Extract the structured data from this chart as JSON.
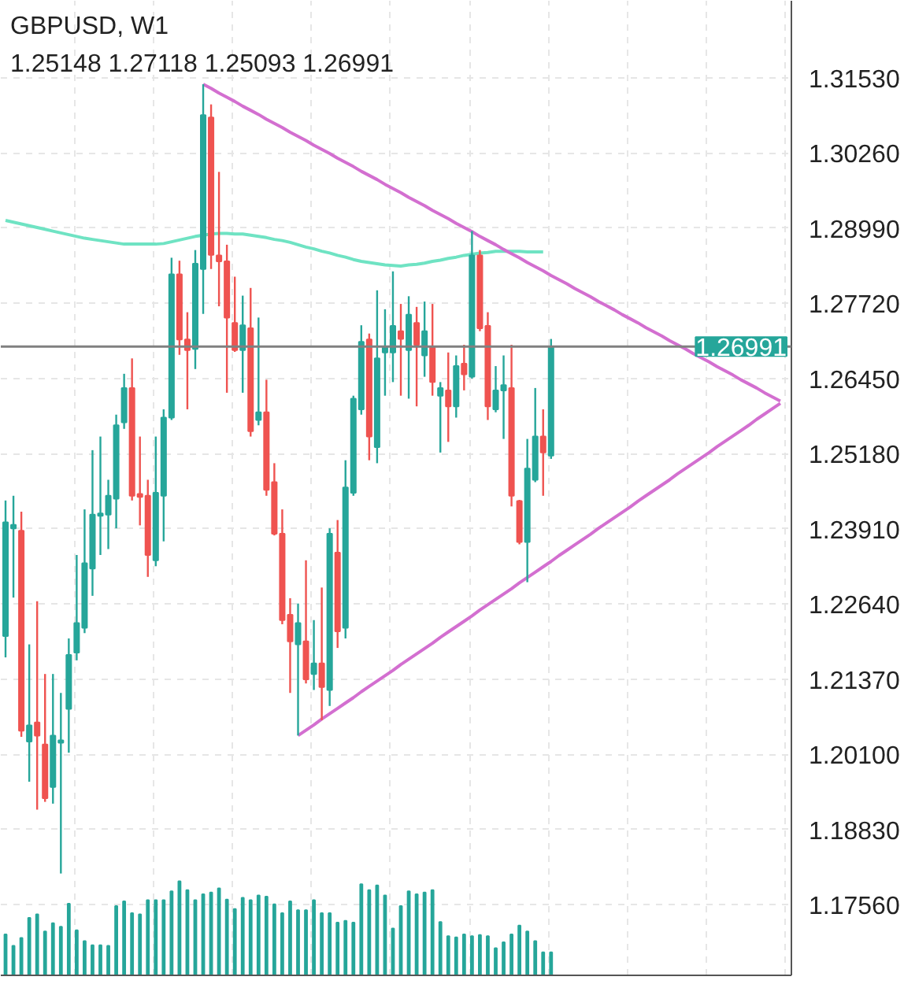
{
  "chart_data": {
    "type": "candlestick",
    "title": "GBPUSD, W1",
    "subtitle": "1.25148 1.27118 1.25093 1.26991",
    "categories": [
      null,
      null,
      null,
      null,
      null,
      null,
      null,
      null,
      null,
      null,
      null,
      null,
      null,
      null,
      null,
      null,
      null,
      null,
      null,
      null,
      null,
      null,
      null,
      null,
      null,
      null,
      null,
      null,
      null,
      null,
      null,
      null,
      null,
      null,
      null,
      null,
      null,
      null,
      null,
      null,
      null,
      null,
      null,
      null,
      null,
      null,
      null,
      null,
      null,
      null,
      null,
      null,
      null,
      null,
      null,
      null,
      null,
      null,
      null,
      null,
      null,
      null,
      null,
      null,
      null,
      null,
      null,
      null,
      null,
      null,
      null,
      null,
      null,
      null,
      null,
      null,
      null,
      null,
      null,
      null,
      null,
      null,
      null,
      null,
      null,
      null,
      null,
      null,
      null,
      null,
      null,
      null,
      null,
      null,
      null,
      null,
      null,
      null,
      null,
      null
    ],
    "ohlc": [
      [
        1.221,
        1.2439,
        1.2174,
        1.2402
      ],
      [
        1.2392,
        1.2447,
        1.2275,
        1.2398
      ],
      [
        1.2388,
        1.242,
        1.204,
        1.205
      ],
      [
        1.2032,
        1.2196,
        1.1964,
        1.2059
      ],
      [
        1.2064,
        1.2269,
        1.1917,
        1.2042
      ],
      [
        1.2027,
        1.2146,
        1.193,
        1.1936
      ],
      [
        1.1955,
        1.2146,
        1.1927,
        1.2042
      ],
      [
        1.203,
        1.2114,
        1.1809,
        1.2034
      ],
      [
        1.2087,
        1.2206,
        1.2013,
        1.2178
      ],
      [
        1.2182,
        1.2347,
        1.2169,
        1.2232
      ],
      [
        1.2224,
        1.2424,
        1.2215,
        1.2333
      ],
      [
        1.2324,
        1.2524,
        1.2278,
        1.2415
      ],
      [
        1.2413,
        1.2547,
        1.2347,
        1.2417
      ],
      [
        1.2415,
        1.2474,
        1.2357,
        1.2447
      ],
      [
        1.2442,
        1.2584,
        1.2392,
        1.2566
      ],
      [
        1.2571,
        1.2653,
        1.256,
        1.2629
      ],
      [
        1.2629,
        1.2679,
        1.2439,
        1.2447
      ],
      [
        1.245,
        1.2547,
        1.2397,
        1.2445
      ],
      [
        1.2447,
        1.2474,
        1.231,
        1.2347
      ],
      [
        1.2338,
        1.2547,
        1.2328,
        1.2452
      ],
      [
        1.2447,
        1.2593,
        1.237,
        1.2579
      ],
      [
        1.2579,
        1.2849,
        1.2575,
        1.2821
      ],
      [
        1.2821,
        1.2844,
        1.2685,
        1.2711
      ],
      [
        1.2711,
        1.2757,
        1.2593,
        1.2693
      ],
      [
        1.2695,
        1.2862,
        1.2661,
        1.2839
      ],
      [
        1.283,
        1.3142,
        1.2754,
        1.309
      ],
      [
        1.3086,
        1.3108,
        1.283,
        1.2854
      ],
      [
        1.2853,
        1.2994,
        1.2767,
        1.2843
      ],
      [
        1.2843,
        1.2871,
        1.2621,
        1.2748
      ],
      [
        1.2739,
        1.2817,
        1.269,
        1.2693
      ],
      [
        1.2693,
        1.2785,
        1.2621,
        1.2735
      ],
      [
        1.273,
        1.2798,
        1.2547,
        1.2556
      ],
      [
        1.2575,
        1.2748,
        1.2566,
        1.2588
      ],
      [
        1.2588,
        1.2643,
        1.2447,
        1.2457
      ],
      [
        1.247,
        1.2502,
        1.238,
        1.2383
      ],
      [
        1.2383,
        1.2424,
        1.223,
        1.2237
      ],
      [
        1.2246,
        1.2274,
        1.2114,
        1.2201
      ],
      [
        1.2196,
        1.2265,
        1.2042,
        1.2232
      ],
      [
        1.2201,
        1.2338,
        1.213,
        1.2137
      ],
      [
        1.2146,
        1.2237,
        1.2119,
        1.2164
      ],
      [
        1.2164,
        1.2292,
        1.2068,
        1.2124
      ],
      [
        1.2119,
        1.2392,
        1.2092,
        1.2383
      ],
      [
        1.2351,
        1.2406,
        1.219,
        1.2218
      ],
      [
        1.2224,
        1.2507,
        1.2206,
        1.2461
      ],
      [
        1.2452,
        1.2616,
        1.2447,
        1.2611
      ],
      [
        1.2593,
        1.2735,
        1.2584,
        1.2707
      ],
      [
        1.2711,
        1.2721,
        1.2507,
        1.2547
      ],
      [
        1.2529,
        1.2794,
        1.2502,
        1.2679
      ],
      [
        1.2689,
        1.2762,
        1.2616,
        1.2698
      ],
      [
        1.2689,
        1.2826,
        1.2639,
        1.2734
      ],
      [
        1.2725,
        1.2771,
        1.2616,
        1.2712
      ],
      [
        1.2693,
        1.2784,
        1.2611,
        1.2753
      ],
      [
        1.2739,
        1.2766,
        1.2598,
        1.2702
      ],
      [
        1.2684,
        1.2775,
        1.2648,
        1.2725
      ],
      [
        1.2698,
        1.2771,
        1.2616,
        1.2639
      ],
      [
        1.2616,
        1.2639,
        1.252,
        1.2629
      ],
      [
        1.2625,
        1.2689,
        1.2538,
        1.2598
      ],
      [
        1.2598,
        1.2684,
        1.2579,
        1.2666
      ],
      [
        1.267,
        1.2702,
        1.2625,
        1.2652
      ],
      [
        1.2648,
        1.2894,
        1.2645,
        1.2853
      ],
      [
        1.2853,
        1.2862,
        1.2725,
        1.273
      ],
      [
        1.2734,
        1.2757,
        1.2575,
        1.2598
      ],
      [
        1.2593,
        1.2666,
        1.2588,
        1.2625
      ],
      [
        1.2625,
        1.2684,
        1.2543,
        1.2634
      ],
      [
        1.2629,
        1.2702,
        1.2429,
        1.2447
      ],
      [
        1.2438,
        1.244,
        1.2365,
        1.2369
      ],
      [
        1.2369,
        1.2543,
        1.2301,
        1.2493
      ],
      [
        1.2474,
        1.2629,
        1.247,
        1.2547
      ],
      [
        1.2547,
        1.2593,
        1.2447,
        1.252
      ],
      [
        1.25148,
        1.27118,
        1.25093,
        1.26991
      ],
      null,
      null,
      null,
      null,
      null,
      null,
      null,
      null,
      null,
      null,
      null,
      null,
      null,
      null,
      null,
      null,
      null,
      null,
      null,
      null,
      null,
      null,
      null,
      null,
      null,
      null,
      null,
      null,
      null,
      null
    ],
    "colors": [
      "#26a69a",
      "#26a69a",
      "#ef5350",
      "#26a69a",
      "#ef5350",
      "#ef5350",
      "#26a69a",
      "#26a69a",
      "#26a69a",
      "#26a69a",
      "#26a69a",
      "#26a69a",
      "#26a69a",
      "#26a69a",
      "#26a69a",
      "#26a69a",
      "#ef5350",
      "#ef5350",
      "#ef5350",
      "#26a69a",
      "#26a69a",
      "#26a69a",
      "#ef5350",
      "#ef5350",
      "#26a69a",
      "#26a69a",
      "#ef5350",
      "#ef5350",
      "#ef5350",
      "#ef5350",
      "#26a69a",
      "#ef5350",
      "#26a69a",
      "#ef5350",
      "#ef5350",
      "#ef5350",
      "#ef5350",
      "#26a69a",
      "#ef5350",
      "#26a69a",
      "#ef5350",
      "#26a69a",
      "#ef5350",
      "#26a69a",
      "#26a69a",
      "#26a69a",
      "#ef5350",
      "#26a69a",
      "#26a69a",
      "#26a69a",
      "#ef5350",
      "#26a69a",
      "#ef5350",
      "#26a69a",
      "#ef5350",
      "#26a69a",
      "#ef5350",
      "#26a69a",
      "#ef5350",
      "#26a69a",
      "#ef5350",
      "#ef5350",
      "#26a69a",
      "#26a69a",
      "#ef5350",
      "#ef5350",
      "#26a69a",
      "#26a69a",
      "#ef5350",
      "#26a69a",
      null,
      null,
      null,
      null,
      null,
      null,
      null,
      null,
      null,
      null,
      null,
      null,
      null,
      null,
      null,
      null,
      null,
      null,
      null,
      null,
      null,
      null,
      null,
      null,
      null,
      null,
      null,
      null,
      null,
      null
    ],
    "series": [
      {
        "type": "line",
        "color": "#6fe3c3",
        "values": [
          1.2912,
          1.2909,
          1.2906,
          1.2903,
          1.29,
          1.2897,
          1.2894,
          1.2891,
          1.2888,
          1.2885,
          1.2882,
          1.288,
          1.2878,
          1.2876,
          1.2874,
          1.2872,
          1.2872,
          1.2872,
          1.2872,
          1.2872,
          1.2873,
          1.2876,
          1.2879,
          1.2882,
          1.2885,
          1.2887,
          1.2889,
          1.289,
          1.289,
          1.2889,
          1.2889,
          1.2887,
          1.2885,
          1.2883,
          1.288,
          1.2878,
          1.2875,
          1.2871,
          1.2867,
          1.2864,
          1.286,
          1.2857,
          1.2853,
          1.285,
          1.2846,
          1.2843,
          1.2841,
          1.2839,
          1.2837,
          1.2836,
          1.2835,
          1.2837,
          1.2838,
          1.284,
          1.2843,
          1.2845,
          1.2848,
          1.285,
          1.2853,
          1.2855,
          1.2857,
          1.2858,
          1.286,
          1.286,
          1.286,
          1.286,
          1.2859,
          1.2859,
          1.2859,
          null,
          null,
          null,
          null,
          null,
          null,
          null,
          null,
          null,
          null,
          null,
          null,
          null,
          null,
          null,
          null,
          null,
          null,
          null,
          null,
          null,
          null,
          null,
          null,
          null,
          null,
          null,
          null,
          null,
          null,
          null
        ]
      },
      {
        "type": "line",
        "color": "#d36fd0",
        "values": [
          null,
          null,
          null,
          null,
          null,
          null,
          null,
          null,
          null,
          null,
          null,
          null,
          null,
          null,
          null,
          null,
          null,
          null,
          null,
          null,
          null,
          null,
          null,
          null,
          null,
          1.3142,
          1.3135,
          1.3127,
          1.312,
          1.3113,
          1.3105,
          1.3098,
          1.3091,
          1.3083,
          1.3076,
          1.3069,
          1.3061,
          1.3054,
          1.3047,
          1.3039,
          1.3032,
          1.3025,
          1.3017,
          1.301,
          1.3003,
          1.2995,
          1.2988,
          1.2981,
          1.2973,
          1.2966,
          1.2959,
          1.2951,
          1.2944,
          1.2937,
          1.2929,
          1.2922,
          1.2915,
          1.2907,
          1.29,
          1.2893,
          1.2885,
          1.2878,
          1.2871,
          1.2863,
          1.2856,
          1.2849,
          1.2841,
          1.2834,
          1.2827,
          1.2819,
          1.2812,
          1.2805,
          1.2797,
          1.279,
          1.2783,
          1.2775,
          1.2768,
          1.2761,
          1.2753,
          1.2746,
          1.2739,
          1.2731,
          1.2724,
          1.2717,
          1.2709,
          1.2702,
          1.2695,
          1.2687,
          1.268,
          1.2673,
          1.2665,
          1.2658,
          1.2651,
          1.2643,
          1.2636,
          1.2629,
          1.2621,
          1.2614,
          1.2607,
          null
        ]
      },
      {
        "type": "line",
        "color": "#d36fd0",
        "values": [
          null,
          null,
          null,
          null,
          null,
          null,
          null,
          null,
          null,
          null,
          null,
          null,
          null,
          null,
          null,
          null,
          null,
          null,
          null,
          null,
          null,
          null,
          null,
          null,
          null,
          null,
          null,
          null,
          null,
          null,
          null,
          null,
          null,
          null,
          null,
          null,
          null,
          1.2042,
          1.2051,
          1.206,
          1.207,
          1.2079,
          1.2088,
          1.2097,
          1.2106,
          1.2116,
          1.2125,
          1.2134,
          1.2143,
          1.2152,
          1.2162,
          1.2171,
          1.218,
          1.2189,
          1.2198,
          1.2208,
          1.2217,
          1.2226,
          1.2235,
          1.2244,
          1.2254,
          1.2263,
          1.2272,
          1.2281,
          1.229,
          1.23,
          1.2309,
          1.2318,
          1.2327,
          1.2336,
          1.2346,
          1.2355,
          1.2364,
          1.2373,
          1.2382,
          1.2392,
          1.2401,
          1.241,
          1.2419,
          1.2428,
          1.2438,
          1.2447,
          1.2456,
          1.2465,
          1.2474,
          1.2484,
          1.2493,
          1.2502,
          1.2511,
          1.252,
          1.253,
          1.2539,
          1.2548,
          1.2557,
          1.2566,
          1.2576,
          1.2585,
          1.2594,
          1.2603,
          null
        ]
      },
      {
        "type": "bar",
        "color": "#26a69a",
        "base": [
          1.1637,
          1.1637,
          1.1637,
          1.1637,
          1.1637,
          1.1637,
          1.1637,
          1.1637,
          1.1637,
          1.1637,
          1.1637,
          1.1637,
          1.1637,
          1.1637,
          1.1637,
          1.1637,
          1.1637,
          1.1637,
          1.1637,
          1.1637,
          1.1637,
          1.1637,
          1.1637,
          1.1637,
          1.1637,
          1.1637,
          1.1637,
          1.1637,
          1.1637,
          1.1637,
          1.1637,
          1.1637,
          1.1637,
          1.1637,
          1.1637,
          1.1637,
          1.1637,
          1.1637,
          1.1637,
          1.1637,
          1.1637,
          1.1637,
          1.1637,
          1.1637,
          1.1637,
          1.1637,
          1.1637,
          1.1637,
          1.1637,
          1.1637,
          1.1637,
          1.1637,
          1.1637,
          1.1637,
          1.1637,
          1.1637,
          1.1637,
          1.1637,
          1.1637,
          1.1637,
          1.1637,
          1.1637,
          1.1637,
          1.1637,
          1.1637,
          1.1637,
          1.1637,
          1.1637,
          1.1637,
          1.1637,
          null,
          null,
          null,
          null,
          null,
          null,
          null,
          null,
          null,
          null,
          null,
          null,
          null,
          null,
          null,
          null,
          null,
          null,
          null,
          null,
          null,
          null,
          null,
          null,
          null,
          null,
          null,
          null,
          null,
          null
        ],
        "values": [
          0.0069,
          0.005,
          0.0063,
          0.0097,
          0.0103,
          0.0074,
          0.0088,
          0.0082,
          0.0121,
          0.0076,
          0.0058,
          0.0051,
          0.0051,
          0.005,
          0.0117,
          0.0125,
          0.0105,
          0.0103,
          0.0127,
          0.0127,
          0.0127,
          0.0142,
          0.0159,
          0.0144,
          0.0127,
          0.0137,
          0.014,
          0.0147,
          0.0128,
          0.0112,
          0.0131,
          0.0127,
          0.0135,
          0.0133,
          0.012,
          0.0105,
          0.0125,
          0.011,
          0.011,
          0.0127,
          0.0105,
          0.0105,
          0.0089,
          0.0092,
          0.0089,
          0.0154,
          0.0144,
          0.0152,
          0.0135,
          0.0079,
          0.0117,
          0.0142,
          0.0137,
          0.014,
          0.0144,
          0.009,
          0.0066,
          0.0064,
          0.0069,
          0.0066,
          0.0068,
          0.0066,
          0.0046,
          0.0056,
          0.0069,
          0.0084,
          0.0074,
          0.0058,
          0.0039,
          0.0039,
          null,
          null,
          null,
          null,
          null,
          null,
          null,
          null,
          null,
          null,
          null,
          null,
          null,
          null,
          null,
          null,
          null,
          null,
          null,
          null,
          null,
          null,
          null,
          null,
          null,
          null,
          null,
          null,
          null,
          null
        ]
      }
    ],
    "ref_lines": [
      {
        "axis": "y",
        "value": 1.26991,
        "label": "1.26991",
        "color": "#808080",
        "line_style": "solid"
      }
    ],
    "ylim": [
      1.1637,
      1.3283
    ],
    "yticks": [
      {
        "value": 1.1756,
        "label": "1.17560"
      },
      {
        "value": 1.1883,
        "label": "1.18830"
      },
      {
        "value": 1.201,
        "label": "1.20100"
      },
      {
        "value": 1.2137,
        "label": "1.21370"
      },
      {
        "value": 1.2264,
        "label": "1.22640"
      },
      {
        "value": 1.2391,
        "label": "1.23910"
      },
      {
        "value": 1.2518,
        "label": "1.25180"
      },
      {
        "value": 1.2645,
        "label": "1.26450"
      },
      {
        "value": 1.2772,
        "label": "1.27720"
      },
      {
        "value": 1.2899,
        "label": "1.28990"
      },
      {
        "value": 1.3026,
        "label": "1.30260"
      },
      {
        "value": 1.3153,
        "label": "1.31530"
      }
    ],
    "grid": true,
    "tick_labels": "y"
  }
}
